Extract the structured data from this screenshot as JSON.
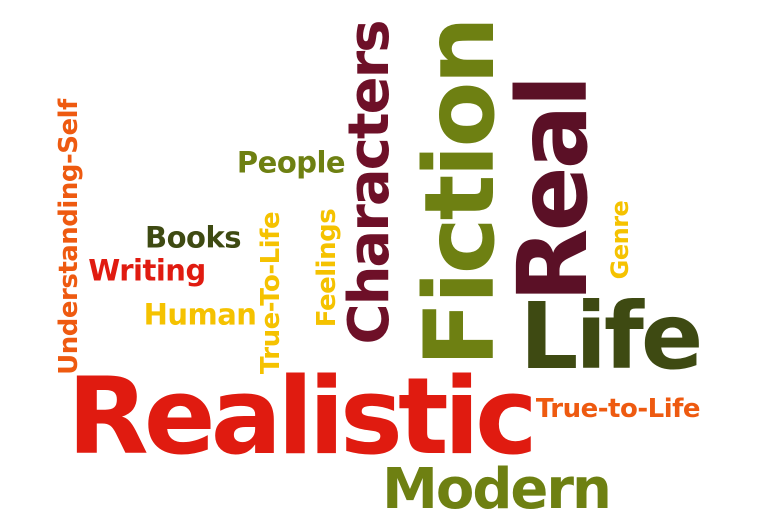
{
  "colors": {
    "red": "#E01B10",
    "orange": "#EE5A10",
    "yellow": "#F5C200",
    "olive": "#6E8012",
    "dark_olive": "#3E4A12",
    "maroon": "#6E1028",
    "dark_maroon": "#5B1026",
    "background": "#FFFFFF"
  },
  "words": [
    {
      "id": "realistic",
      "text": "Realistic",
      "orientation": "horizontal",
      "color": "red"
    },
    {
      "id": "fiction",
      "text": "Fiction",
      "orientation": "vertical",
      "color": "olive"
    },
    {
      "id": "real",
      "text": "Real",
      "orientation": "vertical",
      "color": "dark_maroon"
    },
    {
      "id": "life",
      "text": "Life",
      "orientation": "horizontal",
      "color": "dark_olive"
    },
    {
      "id": "characters",
      "text": "Characters",
      "orientation": "vertical",
      "color": "maroon"
    },
    {
      "id": "modern",
      "text": "Modern",
      "orientation": "horizontal",
      "color": "olive"
    },
    {
      "id": "understanding-self",
      "text": "Understanding-Self",
      "orientation": "vertical",
      "color": "orange"
    },
    {
      "id": "true-to-life-vertical",
      "text": "True-To-Life",
      "orientation": "vertical",
      "color": "yellow"
    },
    {
      "id": "true-to-life-horizontal",
      "text": "True-to-Life",
      "orientation": "horizontal",
      "color": "orange"
    },
    {
      "id": "people",
      "text": "People",
      "orientation": "horizontal",
      "color": "olive"
    },
    {
      "id": "books",
      "text": "Books",
      "orientation": "horizontal",
      "color": "dark_olive"
    },
    {
      "id": "writing",
      "text": "Writing",
      "orientation": "horizontal",
      "color": "red"
    },
    {
      "id": "human",
      "text": "Human",
      "orientation": "horizontal",
      "color": "yellow"
    },
    {
      "id": "feelings",
      "text": "Feelings",
      "orientation": "vertical",
      "color": "yellow"
    },
    {
      "id": "genre",
      "text": "Genre",
      "orientation": "vertical",
      "color": "yellow"
    }
  ]
}
